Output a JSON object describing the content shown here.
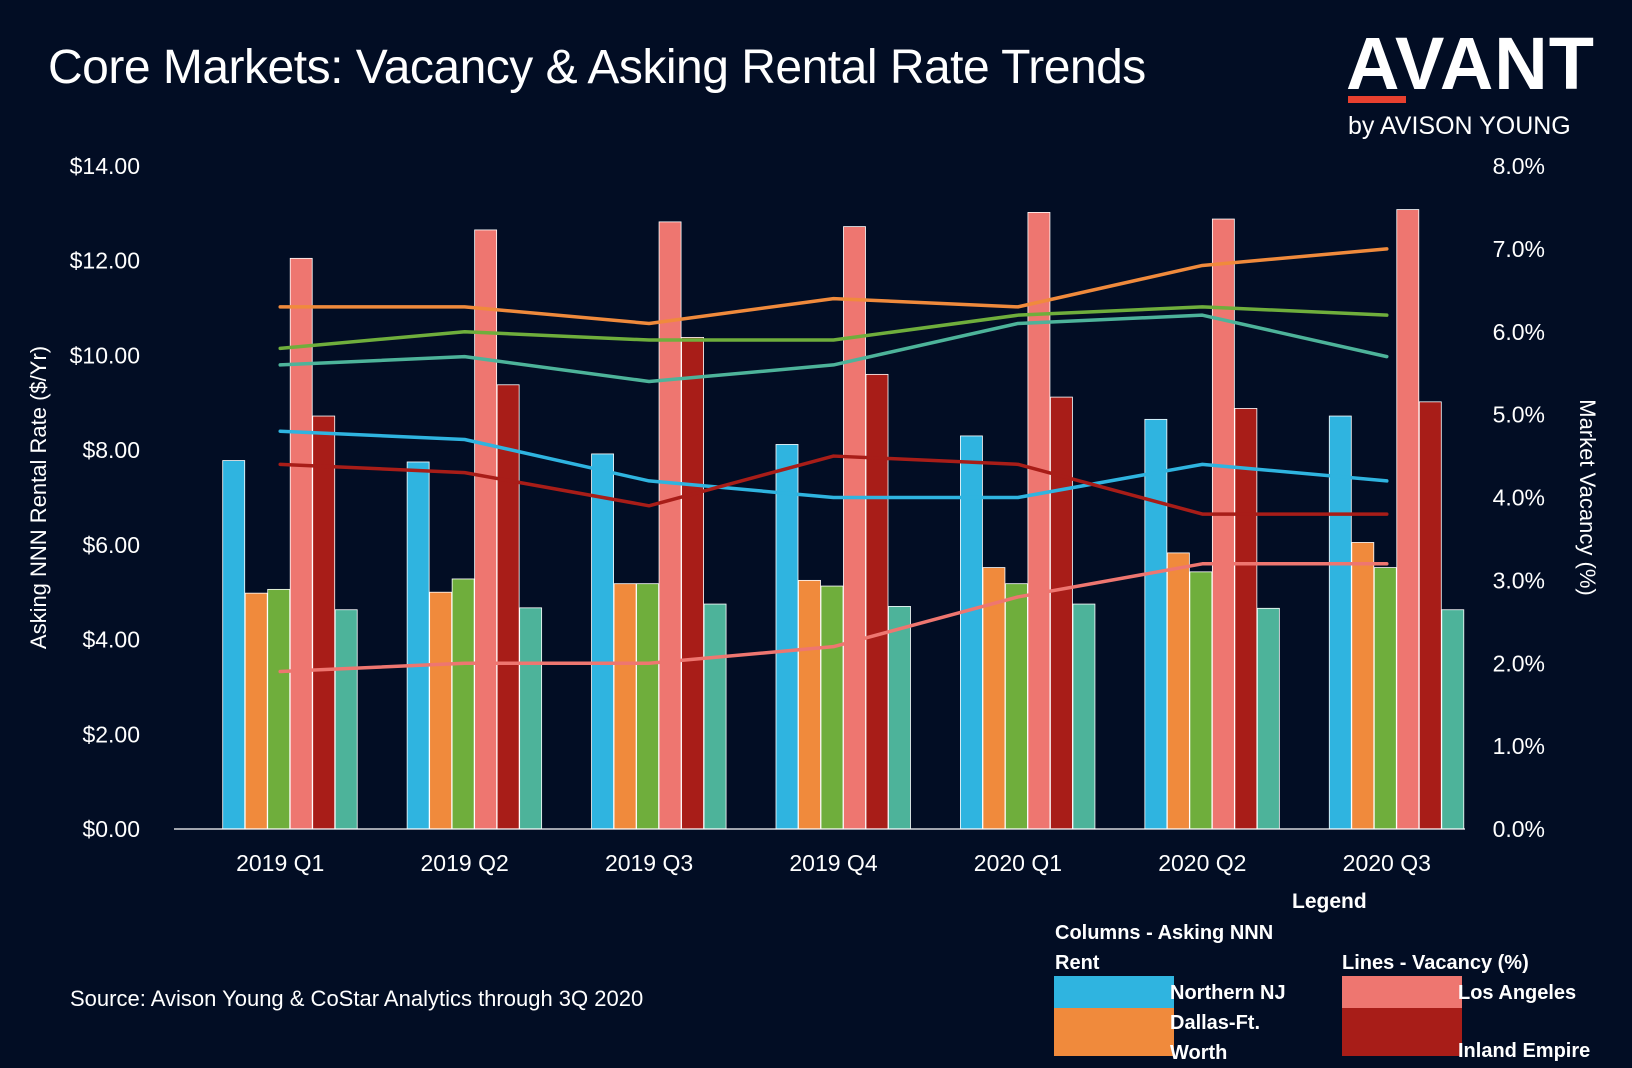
{
  "title": "Core Markets: Vacancy & Asking Rental Rate Trends",
  "logo": {
    "main": "AVANT",
    "sub": "by AVISON YOUNG"
  },
  "source": "Source: Avison Young & CoStar Analytics through 3Q 2020",
  "legend": {
    "title": "Legend",
    "columns_heading_line1": "Columns - Asking NNN",
    "columns_heading_line2": "Rent",
    "lines_heading": "Lines - Vacancy (%)",
    "items": [
      {
        "label": "Northern NJ",
        "color": "#2fb4e0"
      },
      {
        "label_line1": "Dallas-Ft.",
        "label_line2": "Worth",
        "color": "#f08a3c"
      },
      {
        "label": "Los Angeles",
        "color": "#ee7670"
      },
      {
        "label": "Inland Empire",
        "color": "#a81d18"
      }
    ]
  },
  "chart_data": {
    "type": "bar",
    "categories": [
      "2019 Q1",
      "2019 Q2",
      "2019 Q3",
      "2019 Q4",
      "2020 Q1",
      "2020 Q2",
      "2020 Q3"
    ],
    "ylabel": "Asking NNN Rental Rate ($/Yr)",
    "y2label": "Market Vacancy (%)",
    "ylim": [
      0,
      14
    ],
    "y2lim": [
      0,
      8
    ],
    "yticks": [
      "$0.00",
      "$2.00",
      "$4.00",
      "$6.00",
      "$8.00",
      "$10.00",
      "$12.00",
      "$14.00"
    ],
    "y2ticks": [
      "0.0%",
      "1.0%",
      "2.0%",
      "3.0%",
      "4.0%",
      "5.0%",
      "6.0%",
      "7.0%",
      "8.0%"
    ],
    "bar_series": [
      {
        "name": "Northern NJ",
        "color": "#2fb4e0",
        "values": [
          7.78,
          7.75,
          7.92,
          8.12,
          8.3,
          8.65,
          8.72
        ]
      },
      {
        "name": "Dallas-Ft. Worth",
        "color": "#f08a3c",
        "values": [
          4.98,
          5.0,
          5.18,
          5.25,
          5.52,
          5.83,
          6.05
        ]
      },
      {
        "color": "#6fae3c",
        "values": [
          5.06,
          5.28,
          5.18,
          5.13,
          5.18,
          5.43,
          5.52
        ]
      },
      {
        "name": "Los Angeles",
        "color": "#ee7670",
        "values": [
          12.05,
          12.65,
          12.82,
          12.72,
          13.02,
          12.88,
          13.08
        ]
      },
      {
        "name": "Inland Empire",
        "color": "#a81d18",
        "values": [
          8.72,
          9.38,
          10.38,
          9.6,
          9.12,
          8.88,
          9.02
        ]
      },
      {
        "color": "#4db39a",
        "values": [
          4.63,
          4.67,
          4.75,
          4.7,
          4.75,
          4.66,
          4.63
        ]
      }
    ],
    "line_series": [
      {
        "color": "#f08a3c",
        "values": [
          6.3,
          6.3,
          6.1,
          6.4,
          6.3,
          6.8,
          7.0
        ]
      },
      {
        "color": "#6fae3c",
        "values": [
          5.8,
          6.0,
          5.9,
          5.9,
          6.2,
          6.3,
          6.2
        ]
      },
      {
        "color": "#4db39a",
        "values": [
          5.6,
          5.7,
          5.4,
          5.6,
          6.1,
          6.2,
          5.7
        ]
      },
      {
        "color": "#2fb4e0",
        "values": [
          4.8,
          4.7,
          4.2,
          4.0,
          4.0,
          4.4,
          4.2
        ]
      },
      {
        "color": "#a81d18",
        "values": [
          4.4,
          4.3,
          3.9,
          4.5,
          4.4,
          3.8,
          3.8
        ]
      },
      {
        "color": "#ee7670",
        "values": [
          1.9,
          2.0,
          2.0,
          2.2,
          2.8,
          3.2,
          3.2
        ]
      }
    ]
  }
}
